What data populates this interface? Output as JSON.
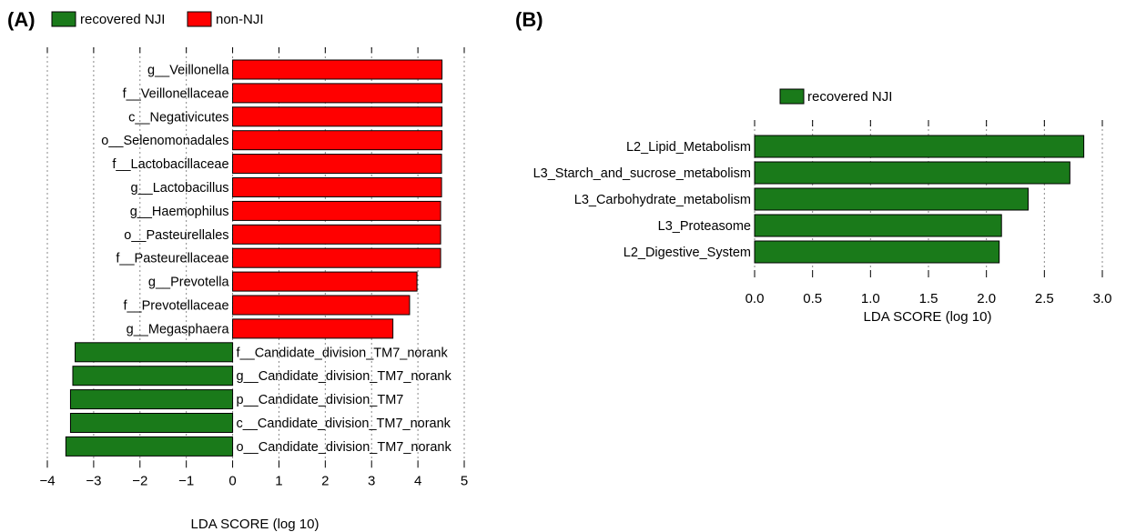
{
  "chart_data": [
    {
      "type": "bar",
      "orientation": "horizontal",
      "panel_label": "(A)",
      "xlabel": "LDA SCORE (log 10)",
      "xlim": [
        -4,
        5
      ],
      "xticks": [
        -4,
        -3,
        -2,
        -1,
        0,
        1,
        2,
        3,
        4,
        5
      ],
      "xtick_labels": [
        "−4",
        "−3",
        "−2",
        "−1",
        "0",
        "1",
        "2",
        "3",
        "4",
        "5"
      ],
      "grid": "vertical dotted",
      "legend": {
        "placement": "top-left",
        "entries": [
          {
            "label": "recovered NJI",
            "color": "#1a7a1a"
          },
          {
            "label": "non-NJI",
            "color": "#ff0000"
          }
        ]
      },
      "categories": [
        "g__Veillonella",
        "f__Veillonellaceae",
        "c__Negativicutes",
        "o__Selenomonadales",
        "f__Lactobacillaceae",
        "g__Lactobacillus",
        "g__Haemophilus",
        "o__Pasteurellales",
        "f__Pasteurellaceae",
        "g__Prevotella",
        "f__Prevotellaceae",
        "g__Megasphaera",
        "f__Candidate_division_TM7_norank",
        "g__Candidate_division_TM7_norank",
        "p__Candidate_division_TM7",
        "c__Candidate_division_TM7_norank",
        "o__Candidate_division_TM7_norank"
      ],
      "values": [
        4.52,
        4.52,
        4.52,
        4.52,
        4.51,
        4.51,
        4.49,
        4.49,
        4.49,
        3.98,
        3.82,
        3.46,
        -3.4,
        -3.45,
        -3.5,
        -3.5,
        -3.6
      ],
      "groups": [
        "non-NJI",
        "non-NJI",
        "non-NJI",
        "non-NJI",
        "non-NJI",
        "non-NJI",
        "non-NJI",
        "non-NJI",
        "non-NJI",
        "non-NJI",
        "non-NJI",
        "non-NJI",
        "recovered NJI",
        "recovered NJI",
        "recovered NJI",
        "recovered NJI",
        "recovered NJI"
      ]
    },
    {
      "type": "bar",
      "orientation": "horizontal",
      "panel_label": "(B)",
      "xlabel": "LDA SCORE (log 10)",
      "xlim": [
        0,
        3.0
      ],
      "xticks": [
        0,
        0.5,
        1.0,
        1.5,
        2.0,
        2.5,
        3.0
      ],
      "xtick_labels": [
        "0.0",
        "0.5",
        "1.0",
        "1.5",
        "2.0",
        "2.5",
        "3.0"
      ],
      "grid": "vertical dotted",
      "legend": {
        "placement": "top-center",
        "entries": [
          {
            "label": "recovered NJI",
            "color": "#1a7a1a"
          }
        ]
      },
      "categories": [
        "L2_Lipid_Metabolism",
        "L3_Starch_and_sucrose_metabolism",
        "L3_Carbohydrate_metabolism",
        "L3_Proteasome",
        "L2_Digestive_System"
      ],
      "values": [
        2.84,
        2.72,
        2.36,
        2.13,
        2.11
      ],
      "groups": [
        "recovered NJI",
        "recovered NJI",
        "recovered NJI",
        "recovered NJI",
        "recovered NJI"
      ]
    }
  ]
}
